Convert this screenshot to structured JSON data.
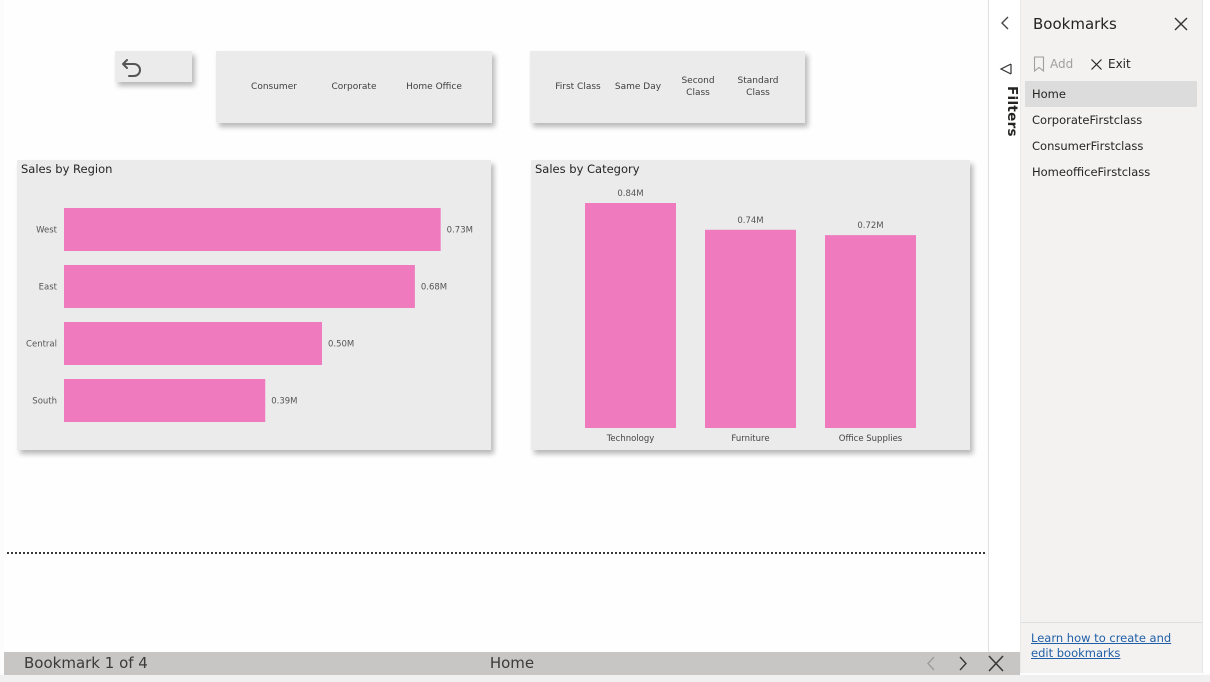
{
  "segment_slicer": {
    "items": [
      "Consumer",
      "Corporate",
      "Home Office"
    ]
  },
  "shipmode_slicer": {
    "items": [
      "First Class",
      "Same Day",
      "Second Class",
      "Standard Class"
    ]
  },
  "colors": {
    "bar": "#ef7bbe",
    "panel": "#ebebeb",
    "selected": "#dcdcdc",
    "link": "#1f5fa8"
  },
  "chart_data": [
    {
      "type": "bar",
      "orientation": "horizontal",
      "title": "Sales by Region",
      "categories": [
        "West",
        "East",
        "Central",
        "South"
      ],
      "values": [
        0.73,
        0.68,
        0.5,
        0.39
      ],
      "data_labels": [
        "0.73M",
        "0.68M",
        "0.50M",
        "0.39M"
      ],
      "unit": "M",
      "xlim": [
        0,
        0.75
      ],
      "grid": false
    },
    {
      "type": "bar",
      "orientation": "vertical",
      "title": "Sales by Category",
      "categories": [
        "Technology",
        "Furniture",
        "Office Supplies"
      ],
      "values": [
        0.84,
        0.74,
        0.72
      ],
      "data_labels": [
        "0.84M",
        "0.74M",
        "0.72M"
      ],
      "unit": "M",
      "ylim": [
        0,
        0.84
      ],
      "grid": false
    }
  ],
  "filters": {
    "label": "Filters",
    "icon": "filter-icon"
  },
  "bookmarks": {
    "title": "Bookmarks",
    "add_label": "Add",
    "exit_label": "Exit",
    "items": [
      {
        "label": "Home",
        "selected": true
      },
      {
        "label": "CorporateFirstclass",
        "selected": false
      },
      {
        "label": "ConsumerFirstclass",
        "selected": false
      },
      {
        "label": "HomeofficeFirstclass",
        "selected": false
      }
    ],
    "learn_link": "Learn how to create and edit bookmarks"
  },
  "bottom_bar": {
    "count_text": "Bookmark 1 of 4",
    "current": "Home"
  }
}
